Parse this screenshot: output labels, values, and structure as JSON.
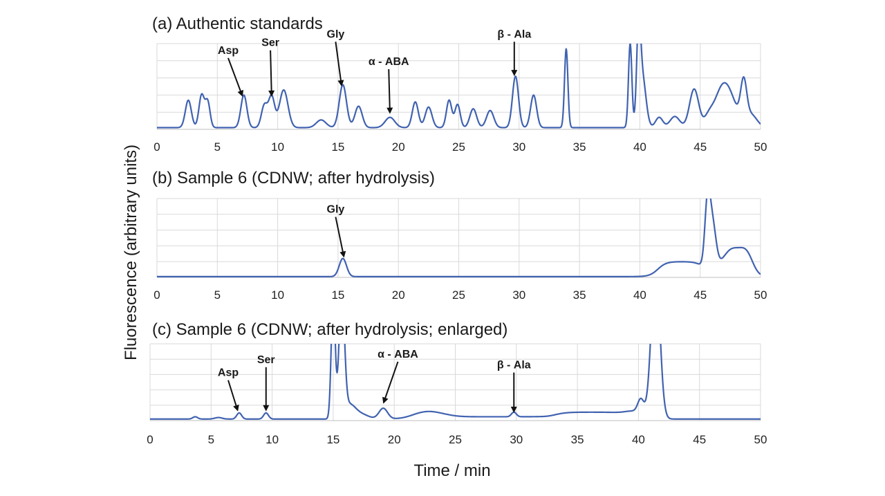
{
  "colors": {
    "trace": "#4062b0",
    "grid": "#d9d9d9",
    "text": "#1a1a1a"
  },
  "ylabel": "Fluorescence (arbitrary units)",
  "xlabel": "Time / min",
  "chart_data": [
    {
      "type": "line",
      "title": "(a) Authentic standards",
      "xlim": [
        0,
        50
      ],
      "ylim": [
        0,
        100
      ],
      "xticks": [
        "0",
        "5",
        "10",
        "15",
        "20",
        "25",
        "30",
        "35",
        "40",
        "45",
        "50"
      ],
      "grid": true,
      "baseline": 2,
      "peaks": [
        {
          "x": 2.6,
          "h": 32,
          "w": 0.25
        },
        {
          "x": 3.7,
          "h": 38,
          "w": 0.22
        },
        {
          "x": 4.2,
          "h": 30,
          "w": 0.2
        },
        {
          "x": 7.2,
          "h": 38,
          "w": 0.25
        },
        {
          "x": 8.9,
          "h": 26,
          "w": 0.25
        },
        {
          "x": 9.5,
          "h": 36,
          "w": 0.25
        },
        {
          "x": 10.5,
          "h": 44,
          "w": 0.35
        },
        {
          "x": 13.6,
          "h": 9,
          "w": 0.4
        },
        {
          "x": 15.4,
          "h": 50,
          "w": 0.3
        },
        {
          "x": 16.7,
          "h": 25,
          "w": 0.3
        },
        {
          "x": 19.3,
          "h": 12,
          "w": 0.4
        },
        {
          "x": 21.4,
          "h": 30,
          "w": 0.25
        },
        {
          "x": 22.5,
          "h": 24,
          "w": 0.28
        },
        {
          "x": 24.2,
          "h": 32,
          "w": 0.22
        },
        {
          "x": 24.9,
          "h": 27,
          "w": 0.22
        },
        {
          "x": 26.2,
          "h": 22,
          "w": 0.28
        },
        {
          "x": 27.6,
          "h": 20,
          "w": 0.3
        },
        {
          "x": 29.7,
          "h": 60,
          "w": 0.25
        },
        {
          "x": 31.2,
          "h": 38,
          "w": 0.25
        },
        {
          "x": 33.9,
          "h": 92,
          "w": 0.14
        },
        {
          "x": 39.2,
          "h": 98,
          "w": 0.14
        },
        {
          "x": 39.9,
          "h": 98,
          "w": 0.16
        },
        {
          "x": 40.2,
          "h": 60,
          "w": 0.3
        },
        {
          "x": 41.6,
          "h": 12,
          "w": 0.3
        },
        {
          "x": 42.9,
          "h": 13,
          "w": 0.4
        },
        {
          "x": 44.5,
          "h": 45,
          "w": 0.38
        },
        {
          "x": 45.7,
          "h": 10,
          "w": 0.35
        },
        {
          "x": 47.3,
          "h": 38,
          "w": 0.7
        },
        {
          "x": 48.6,
          "h": 45,
          "w": 0.25
        },
        {
          "x": 46.6,
          "h": 22,
          "w": 0.6
        },
        {
          "x": 49.2,
          "h": 15,
          "w": 0.5
        }
      ],
      "annotations": [
        {
          "text": "Asp",
          "x": 7.1,
          "y": 38,
          "label_x": 5.9,
          "label_y": 88
        },
        {
          "text": "Ser",
          "x": 9.5,
          "y": 38,
          "label_x": 9.4,
          "label_y": 97
        },
        {
          "text": "Gly",
          "x": 15.3,
          "y": 50,
          "label_x": 14.8,
          "label_y": 107
        },
        {
          "text": "α - ABA",
          "x": 19.3,
          "y": 18,
          "label_x": 19.2,
          "label_y": 75
        },
        {
          "text": "β - Ala",
          "x": 29.6,
          "y": 62,
          "label_x": 29.6,
          "label_y": 107
        }
      ]
    },
    {
      "type": "line",
      "title": "(b) Sample 6 (CDNW; after hydrolysis)",
      "xlim": [
        0,
        50
      ],
      "ylim": [
        0,
        100
      ],
      "xticks": [
        "0",
        "5",
        "10",
        "15",
        "20",
        "25",
        "30",
        "35",
        "40",
        "45",
        "50"
      ],
      "grid": true,
      "baseline": 1,
      "peaks": [
        {
          "x": 15.4,
          "h": 23,
          "w": 0.3
        },
        {
          "x": 45.6,
          "h": 75,
          "w": 0.22
        },
        {
          "x": 46.0,
          "h": 60,
          "w": 0.3
        },
        {
          "x": 47.7,
          "h": 35,
          "w": 0.9
        },
        {
          "x": 48.9,
          "h": 18,
          "w": 0.5
        }
      ],
      "plateaus": [
        {
          "from": 41.5,
          "to": 45.4,
          "h": 19,
          "edge": 0.35
        }
      ],
      "annotations": [
        {
          "text": "Gly",
          "x": 15.5,
          "y": 25,
          "label_x": 14.8,
          "label_y": 82
        }
      ]
    },
    {
      "type": "line",
      "title": "(c) Sample 6 (CDNW; after hydrolysis; enlarged)",
      "xlim": [
        0,
        50
      ],
      "ylim": [
        0,
        100
      ],
      "xticks": [
        "0",
        "5",
        "10",
        "15",
        "20",
        "25",
        "30",
        "35",
        "40",
        "45",
        "50"
      ],
      "grid": true,
      "baseline": 2,
      "peaks": [
        {
          "x": 3.7,
          "h": 3,
          "w": 0.2
        },
        {
          "x": 5.6,
          "h": 2,
          "w": 0.3
        },
        {
          "x": 7.3,
          "h": 8,
          "w": 0.2
        },
        {
          "x": 9.5,
          "h": 8,
          "w": 0.2
        },
        {
          "x": 15.0,
          "h": 160,
          "w": 0.16
        },
        {
          "x": 15.7,
          "h": 160,
          "w": 0.22
        },
        {
          "x": 16.3,
          "h": 18,
          "w": 0.5
        },
        {
          "x": 17.3,
          "h": 6,
          "w": 0.6
        },
        {
          "x": 19.1,
          "h": 14,
          "w": 0.35
        },
        {
          "x": 22.8,
          "h": 7,
          "w": 1.2
        },
        {
          "x": 29.8,
          "h": 6,
          "w": 0.2
        },
        {
          "x": 40.2,
          "h": 18,
          "w": 0.25
        },
        {
          "x": 41.4,
          "h": 200,
          "w": 0.35
        }
      ],
      "plateaus": [
        {
          "from": 21.5,
          "to": 32.4,
          "h": 3,
          "edge": 0.4
        },
        {
          "from": 33.0,
          "to": 39.0,
          "h": 9,
          "edge": 0.5
        },
        {
          "from": 39.0,
          "to": 40.6,
          "h": 11,
          "edge": 0.4
        }
      ],
      "annotations": [
        {
          "text": "Asp",
          "x": 7.2,
          "y": 12,
          "label_x": 6.4,
          "label_y": 58
        },
        {
          "text": "Ser",
          "x": 9.5,
          "y": 12,
          "label_x": 9.5,
          "label_y": 75
        },
        {
          "text": "α - ABA",
          "x": 19.1,
          "y": 22,
          "label_x": 20.3,
          "label_y": 82
        },
        {
          "text": "β - Ala",
          "x": 29.8,
          "y": 10,
          "label_x": 29.8,
          "label_y": 68
        }
      ]
    }
  ]
}
